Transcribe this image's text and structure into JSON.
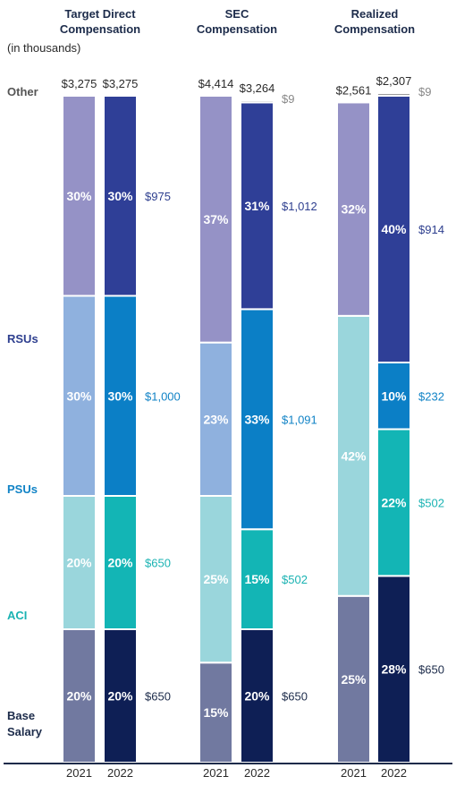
{
  "chart_data": {
    "type": "bar",
    "stacked": true,
    "unit_label": "(in thousands)",
    "groups": [
      {
        "title": [
          "Target Direct",
          "Compensation"
        ],
        "bars": [
          {
            "year": "2021",
            "total": "$3,275",
            "segments": {
              "Base Salary": 20,
              "ACI": 20,
              "PSUs": 30,
              "RSUs": 30
            },
            "percent_labels": {
              "Base Salary": "20%",
              "ACI": "20%",
              "PSUs": "30%",
              "RSUs": "30%"
            },
            "value_labels": {}
          },
          {
            "year": "2022",
            "total": "$3,275",
            "segments": {
              "Base Salary": 20,
              "ACI": 20,
              "PSUs": 30,
              "RSUs": 30
            },
            "percent_labels": {
              "Base Salary": "20%",
              "ACI": "20%",
              "PSUs": "30%",
              "RSUs": "30%"
            },
            "value_labels": {
              "Base Salary": "$650",
              "ACI": "$650",
              "PSUs": "$1,000",
              "RSUs": "$975"
            }
          }
        ]
      },
      {
        "title": [
          "SEC",
          "Compensation"
        ],
        "bars": [
          {
            "year": "2021",
            "total": "$4,414",
            "segments": {
              "Base Salary": 15,
              "ACI": 25,
              "PSUs": 23,
              "RSUs": 37
            },
            "percent_labels": {
              "Base Salary": "15%",
              "ACI": "25%",
              "PSUs": "23%",
              "RSUs": "37%"
            },
            "value_labels": {}
          },
          {
            "year": "2022",
            "total": "$3,264",
            "segments": {
              "Base Salary": 20,
              "ACI": 15,
              "PSUs": 33,
              "RSUs": 31,
              "Other": 0.3
            },
            "percent_labels": {
              "Base Salary": "20%",
              "ACI": "15%",
              "PSUs": "33%",
              "RSUs": "31%"
            },
            "value_labels": {
              "Base Salary": "$650",
              "ACI": "$502",
              "PSUs": "$1,091",
              "RSUs": "$1,012",
              "Other": "$9"
            }
          }
        ]
      },
      {
        "title": [
          "Realized",
          "Compensation"
        ],
        "bars": [
          {
            "year": "2021",
            "total": "$2,561",
            "segments": {
              "Base Salary": 25,
              "ACI": 42,
              "RSUs": 32
            },
            "percent_labels": {
              "Base Salary": "25%",
              "ACI": "42%",
              "RSUs": "32%"
            },
            "value_labels": {}
          },
          {
            "year": "2022",
            "total": "$2,307",
            "segments": {
              "Base Salary": 28,
              "ACI": 22,
              "PSUs": 10,
              "RSUs": 40,
              "Other": 0.4
            },
            "percent_labels": {
              "Base Salary": "28%",
              "ACI": "22%",
              "PSUs": "10%",
              "RSUs": "40%"
            },
            "value_labels": {
              "Base Salary": "$650",
              "ACI": "$502",
              "PSUs": "$232",
              "RSUs": "$914",
              "Other": "$9"
            }
          }
        ]
      }
    ],
    "categories": [
      {
        "key": "Other",
        "label": [
          "Other"
        ],
        "text_color": "#555555"
      },
      {
        "key": "RSUs",
        "label": [
          "RSUs"
        ],
        "text_color": "#2e3f8f"
      },
      {
        "key": "PSUs",
        "label": [
          "PSUs"
        ],
        "text_color": "#1183c6"
      },
      {
        "key": "ACI",
        "label": [
          "ACI"
        ],
        "text_color": "#1bb3b3"
      },
      {
        "key": "Base Salary",
        "label": [
          "Base",
          "Salary"
        ],
        "text_color": "#1c2b4a"
      }
    ],
    "colors": {
      "2021": {
        "Base Salary": "#7179a0",
        "ACI": "#9ad6dc",
        "PSUs": "#8fb1de",
        "RSUs": "#9592c6"
      },
      "2022": {
        "Base Salary": "#0e1f55",
        "ACI": "#13b5b5",
        "PSUs": "#0b7fc6",
        "RSUs": "#2f3f97",
        "Other": "#9a9a9a"
      }
    },
    "value_label_colors": {
      "Base Salary": "#1c2b4a",
      "ACI": "#1bb3b3",
      "PSUs": "#1183c6",
      "RSUs": "#2e3f8f",
      "Other": "#888888"
    }
  }
}
